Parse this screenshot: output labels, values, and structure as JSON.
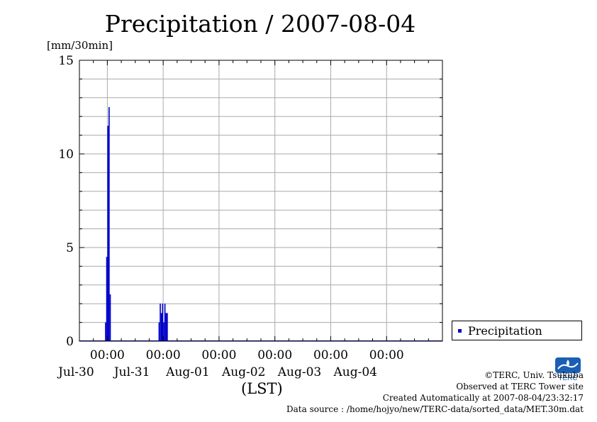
{
  "title": "Precipitation / 2007-08-04",
  "unit_label": "[mm/30min]",
  "x_axis_label": "(LST)",
  "legend": {
    "label": "Precipitation",
    "color": "#0000cc"
  },
  "credits": {
    "copyright": "©TERC, Univ. Tsukuba",
    "observed": "Observed at TERC Tower site",
    "created": "Created Automatically at 2007-08-04/23:32:17",
    "source": "Data source : /home/hojyo/new/TERC-data/sorted_data/MET.30m.dat"
  },
  "logo": {
    "text": "TERC",
    "color": "#1a5fb4"
  },
  "chart_data": {
    "type": "bar",
    "title": "Precipitation / 2007-08-04",
    "ylabel": "[mm/30min]",
    "xlabel": "(LST)",
    "ylim": [
      0,
      15
    ],
    "yticks": [
      0,
      5,
      10,
      15
    ],
    "xlim": [
      "2007-07-29 12:00",
      "2007-08-05 00:00"
    ],
    "xticks": [
      {
        "time": "2007-07-30 00:00",
        "time_label": "00:00",
        "date_label": "Jul-30"
      },
      {
        "time": "2007-07-31 00:00",
        "time_label": "00:00",
        "date_label": "Jul-31"
      },
      {
        "time": "2007-08-01 00:00",
        "time_label": "00:00",
        "date_label": "Aug-01"
      },
      {
        "time": "2007-08-02 00:00",
        "time_label": "00:00",
        "date_label": "Aug-02"
      },
      {
        "time": "2007-08-03 00:00",
        "time_label": "00:00",
        "date_label": "Aug-03"
      },
      {
        "time": "2007-08-04 00:00",
        "time_label": "00:00",
        "date_label": "Aug-04"
      }
    ],
    "grid": true,
    "legend_position": "outside-bottom-right",
    "series": [
      {
        "name": "Precipitation",
        "color": "#0000cc",
        "points": [
          {
            "t": "2007-07-29 23:00",
            "v": 1.0
          },
          {
            "t": "2007-07-29 23:30",
            "v": 4.5
          },
          {
            "t": "2007-07-30 00:00",
            "v": 11.5
          },
          {
            "t": "2007-07-30 00:30",
            "v": 12.5
          },
          {
            "t": "2007-07-30 01:00",
            "v": 2.5
          },
          {
            "t": "2007-07-30 22:00",
            "v": 1.0
          },
          {
            "t": "2007-07-30 22:30",
            "v": 2.0
          },
          {
            "t": "2007-07-30 23:00",
            "v": 1.5
          },
          {
            "t": "2007-07-30 23:30",
            "v": 2.0
          },
          {
            "t": "2007-07-31 00:00",
            "v": 1.0
          },
          {
            "t": "2007-07-31 00:30",
            "v": 2.0
          },
          {
            "t": "2007-07-31 01:00",
            "v": 1.5
          },
          {
            "t": "2007-07-31 01:30",
            "v": 1.5
          }
        ]
      }
    ]
  }
}
